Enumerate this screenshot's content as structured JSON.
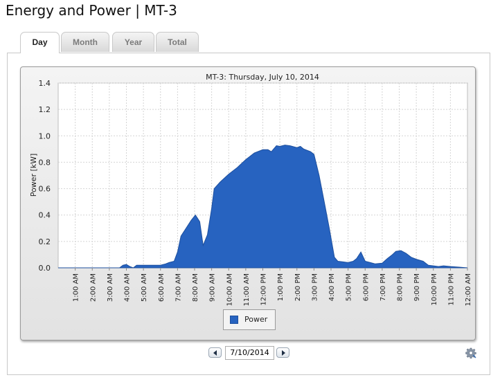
{
  "page": {
    "title": "Energy and Power | MT-3"
  },
  "tabs": [
    {
      "label": "Day",
      "active": true
    },
    {
      "label": "Month",
      "active": false
    },
    {
      "label": "Year",
      "active": false
    },
    {
      "label": "Total",
      "active": false
    }
  ],
  "chart_data": {
    "type": "area",
    "title": "MT-3: Thursday, July 10, 2014",
    "xlabel": "",
    "ylabel": "Power [kW]",
    "ylim": [
      0,
      1.4
    ],
    "xlim": [
      0,
      24
    ],
    "yticks": [
      "0.0",
      "0.2",
      "0.4",
      "0.6",
      "0.8",
      "1.0",
      "1.2",
      "1.4"
    ],
    "xticks": [
      "1:00 AM",
      "2:00 AM",
      "3:00 AM",
      "4:00 AM",
      "5:00 AM",
      "6:00 AM",
      "7:00 AM",
      "8:00 AM",
      "9:00 AM",
      "10:00 AM",
      "11:00 AM",
      "12:00 PM",
      "1:00 PM",
      "2:00 PM",
      "3:00 PM",
      "4:00 PM",
      "5:00 PM",
      "6:00 PM",
      "7:00 PM",
      "8:00 PM",
      "9:00 PM",
      "10:00 PM",
      "11:00 PM",
      "12:00 AM"
    ],
    "grid": true,
    "legend_position": "bottom",
    "series": [
      {
        "name": "Power",
        "color": "#2763c0",
        "points": [
          [
            0,
            0
          ],
          [
            3.6,
            0
          ],
          [
            3.8,
            0.02
          ],
          [
            4.0,
            0.025
          ],
          [
            4.2,
            0.01
          ],
          [
            4.4,
            0.0
          ],
          [
            4.6,
            0.02
          ],
          [
            5.0,
            0.02
          ],
          [
            5.5,
            0.02
          ],
          [
            6.0,
            0.02
          ],
          [
            6.3,
            0.03
          ],
          [
            6.5,
            0.04
          ],
          [
            6.8,
            0.05
          ],
          [
            7.0,
            0.12
          ],
          [
            7.2,
            0.24
          ],
          [
            7.5,
            0.3
          ],
          [
            7.8,
            0.36
          ],
          [
            8.05,
            0.4
          ],
          [
            8.3,
            0.35
          ],
          [
            8.5,
            0.17
          ],
          [
            8.75,
            0.25
          ],
          [
            9.0,
            0.45
          ],
          [
            9.15,
            0.6
          ],
          [
            9.5,
            0.65
          ],
          [
            10.0,
            0.71
          ],
          [
            10.5,
            0.76
          ],
          [
            10.75,
            0.79
          ],
          [
            11.0,
            0.82
          ],
          [
            11.5,
            0.87
          ],
          [
            12.0,
            0.895
          ],
          [
            12.3,
            0.895
          ],
          [
            12.5,
            0.88
          ],
          [
            12.8,
            0.925
          ],
          [
            13.0,
            0.92
          ],
          [
            13.3,
            0.93
          ],
          [
            13.6,
            0.925
          ],
          [
            14.0,
            0.91
          ],
          [
            14.2,
            0.92
          ],
          [
            14.4,
            0.9
          ],
          [
            14.8,
            0.88
          ],
          [
            15.0,
            0.86
          ],
          [
            15.3,
            0.7
          ],
          [
            15.6,
            0.5
          ],
          [
            15.9,
            0.3
          ],
          [
            16.2,
            0.08
          ],
          [
            16.4,
            0.05
          ],
          [
            16.7,
            0.045
          ],
          [
            17.0,
            0.04
          ],
          [
            17.3,
            0.05
          ],
          [
            17.5,
            0.07
          ],
          [
            17.75,
            0.12
          ],
          [
            18.0,
            0.05
          ],
          [
            18.3,
            0.04
          ],
          [
            18.6,
            0.03
          ],
          [
            19.0,
            0.035
          ],
          [
            19.3,
            0.07
          ],
          [
            19.6,
            0.1
          ],
          [
            19.8,
            0.125
          ],
          [
            20.1,
            0.13
          ],
          [
            20.4,
            0.11
          ],
          [
            20.7,
            0.08
          ],
          [
            21.0,
            0.065
          ],
          [
            21.4,
            0.05
          ],
          [
            21.7,
            0.02
          ],
          [
            22.0,
            0.015
          ],
          [
            22.3,
            0.01
          ],
          [
            22.6,
            0.015
          ],
          [
            23.0,
            0.01
          ],
          [
            23.5,
            0.005
          ],
          [
            24.0,
            0.0
          ]
        ]
      }
    ]
  },
  "legend": {
    "label": "Power",
    "color": "#2763c0"
  },
  "date_picker": {
    "value": "7/10/2014",
    "prev_icon": "arrow-left-icon",
    "next_icon": "arrow-right-icon"
  },
  "settings": {
    "icon": "gear-icon"
  }
}
